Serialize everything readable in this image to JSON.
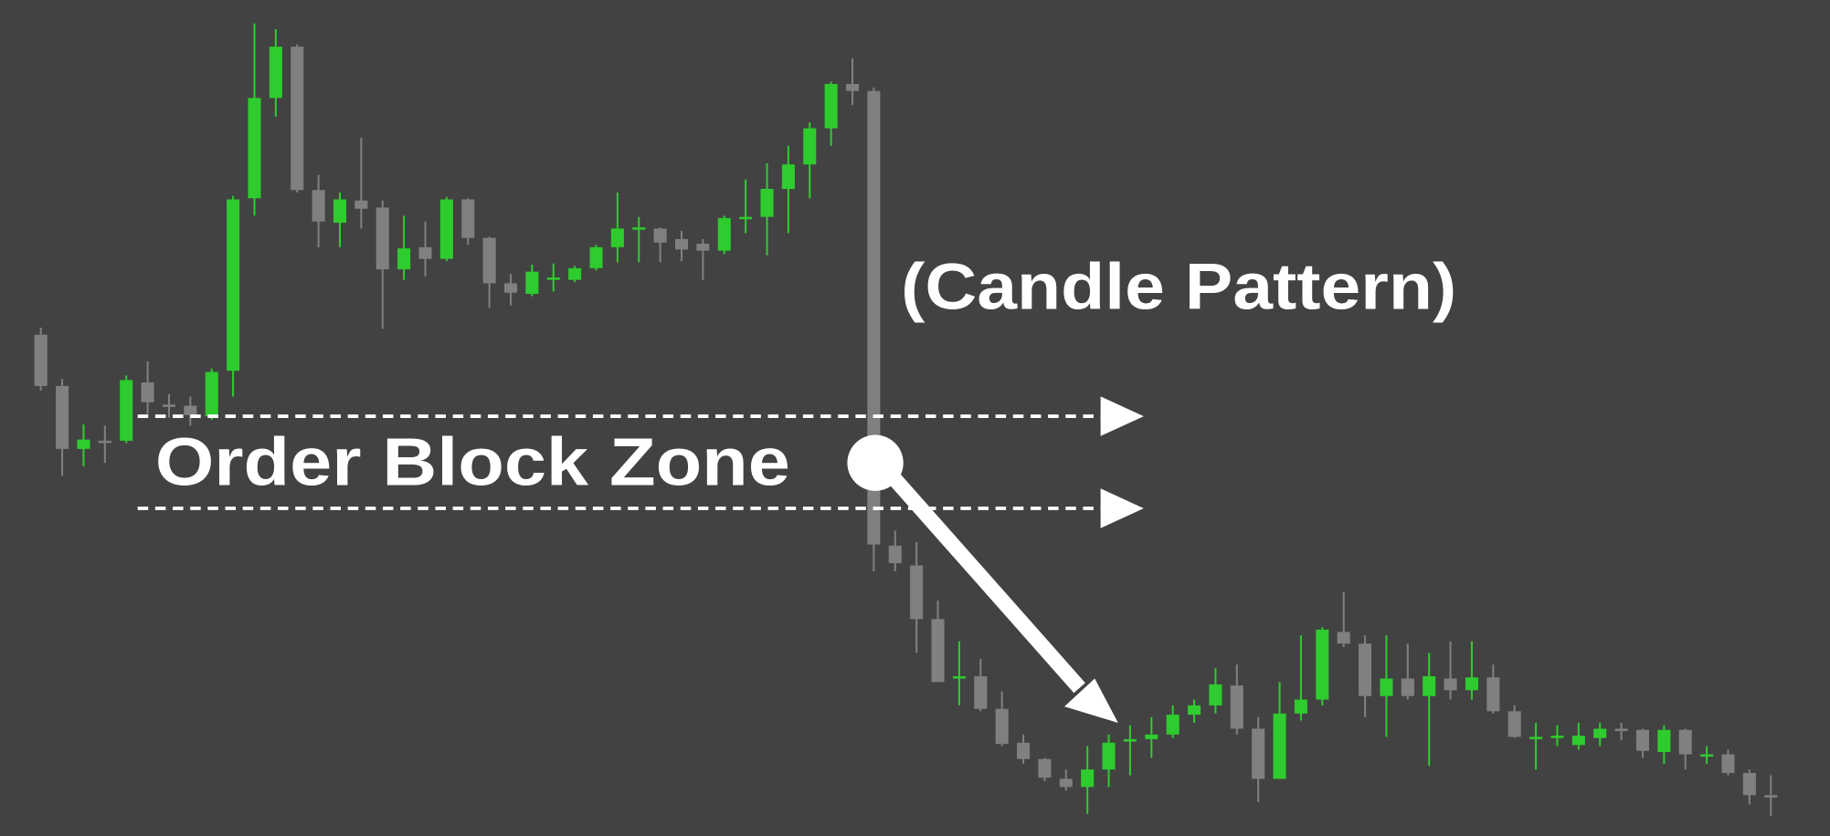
{
  "chart_data": {
    "type": "candlestick",
    "annotations": [
      "(Candle Pattern)",
      "Order Block Zone"
    ],
    "open": [
      430,
      386,
      332,
      339,
      339,
      389,
      370,
      369,
      360,
      399,
      547,
      633,
      677,
      554,
      526,
      545,
      539,
      486,
      505,
      495,
      546,
      513,
      474,
      465,
      479,
      477,
      487,
      505,
      522,
      521,
      512,
      508,
      502,
      531,
      531,
      555,
      576,
      607,
      645,
      639,
      249,
      232,
      186,
      137,
      137,
      109,
      80,
      66,
      49,
      42,
      57,
      83,
      83,
      87,
      104,
      112,
      129,
      92,
      49,
      105,
      117,
      175,
      165,
      120,
      135,
      120,
      135,
      125,
      136,
      107,
      85,
      86,
      78,
      84,
      92,
      91,
      72,
      91,
      70,
      70,
      54,
      35
    ],
    "high": [
      436,
      392,
      353,
      352,
      395,
      407,
      379,
      377,
      401,
      549,
      697,
      692,
      679,
      567,
      552,
      599,
      545,
      532,
      527,
      548,
      547,
      514,
      482,
      490,
      491,
      489,
      507,
      552,
      531,
      522,
      519,
      512,
      532,
      563,
      577,
      592,
      612,
      647,
      667,
      642,
      262,
      252,
      202,
      167,
      152,
      124,
      87,
      67,
      57,
      77,
      87,
      95,
      102,
      112,
      117,
      144,
      147,
      102,
      132,
      172,
      179,
      209,
      172,
      172,
      165,
      157,
      167,
      167,
      147,
      112,
      97,
      95,
      97,
      97,
      97,
      92,
      95,
      92,
      77,
      74,
      57,
      52
    ],
    "low": [
      382,
      309,
      317,
      320,
      337,
      362,
      359,
      352,
      357,
      377,
      532,
      617,
      552,
      505,
      505,
      521,
      435,
      477,
      480,
      493,
      507,
      453,
      455,
      463,
      467,
      475,
      485,
      492,
      492,
      492,
      493,
      477,
      499,
      517,
      498,
      517,
      547,
      592,
      627,
      227,
      227,
      157,
      132,
      112,
      107,
      77,
      62,
      47,
      39,
      19,
      42,
      52,
      67,
      84,
      97,
      105,
      87,
      29,
      49,
      99,
      112,
      162,
      102,
      85,
      117,
      60,
      117,
      117,
      105,
      84,
      57,
      77,
      74,
      77,
      82,
      67,
      62,
      57,
      62,
      52,
      27,
      17
    ],
    "close": [
      386,
      332,
      340,
      339,
      391,
      372,
      370,
      361,
      398,
      546,
      633,
      677,
      554,
      527,
      546,
      538,
      486,
      504,
      495,
      546,
      513,
      474,
      466,
      484,
      479,
      487,
      505,
      521,
      522,
      509,
      503,
      502,
      530,
      531,
      555,
      576,
      607,
      645,
      639,
      250,
      234,
      186,
      132,
      137,
      109,
      79,
      66,
      50,
      42,
      57,
      80,
      83,
      87,
      104,
      112,
      130,
      92,
      49,
      105,
      117,
      177,
      165,
      120,
      135,
      120,
      137,
      125,
      136,
      107,
      85,
      85,
      86,
      86,
      92,
      92,
      73,
      91,
      70,
      70,
      54,
      35,
      35
    ],
    "colors": [
      "#808080",
      "#808080",
      "#2ecc2e",
      "#808080",
      "#2ecc2e",
      "#808080",
      "#808080",
      "#808080",
      "#2ecc2e",
      "#2ecc2e",
      "#2ecc2e",
      "#2ecc2e",
      "#808080",
      "#808080",
      "#2ecc2e",
      "#808080",
      "#808080",
      "#2ecc2e",
      "#808080",
      "#2ecc2e",
      "#808080",
      "#808080",
      "#808080",
      "#2ecc2e",
      "#2ecc2e",
      "#2ecc2e",
      "#2ecc2e",
      "#2ecc2e",
      "#2ecc2e",
      "#808080",
      "#808080",
      "#808080",
      "#2ecc2e",
      "#2ecc2e",
      "#2ecc2e",
      "#2ecc2e",
      "#2ecc2e",
      "#2ecc2e",
      "#808080",
      "#808080",
      "#808080",
      "#808080",
      "#808080",
      "#2ecc2e",
      "#808080",
      "#808080",
      "#808080",
      "#808080",
      "#808080",
      "#2ecc2e",
      "#2ecc2e",
      "#2ecc2e",
      "#2ecc2e",
      "#2ecc2e",
      "#2ecc2e",
      "#2ecc2e",
      "#808080",
      "#808080",
      "#2ecc2e",
      "#2ecc2e",
      "#2ecc2e",
      "#808080",
      "#808080",
      "#2ecc2e",
      "#808080",
      "#2ecc2e",
      "#808080",
      "#2ecc2e",
      "#808080",
      "#808080",
      "#2ecc2e",
      "#2ecc2e",
      "#2ecc2e",
      "#2ecc2e",
      "#808080",
      "#808080",
      "#2ecc2e",
      "#808080",
      "#2ecc2e",
      "#808080",
      "#808080",
      "#808080"
    ],
    "zone": [
      281,
      360
    ],
    "ylim": [
      0,
      717
    ]
  }
}
